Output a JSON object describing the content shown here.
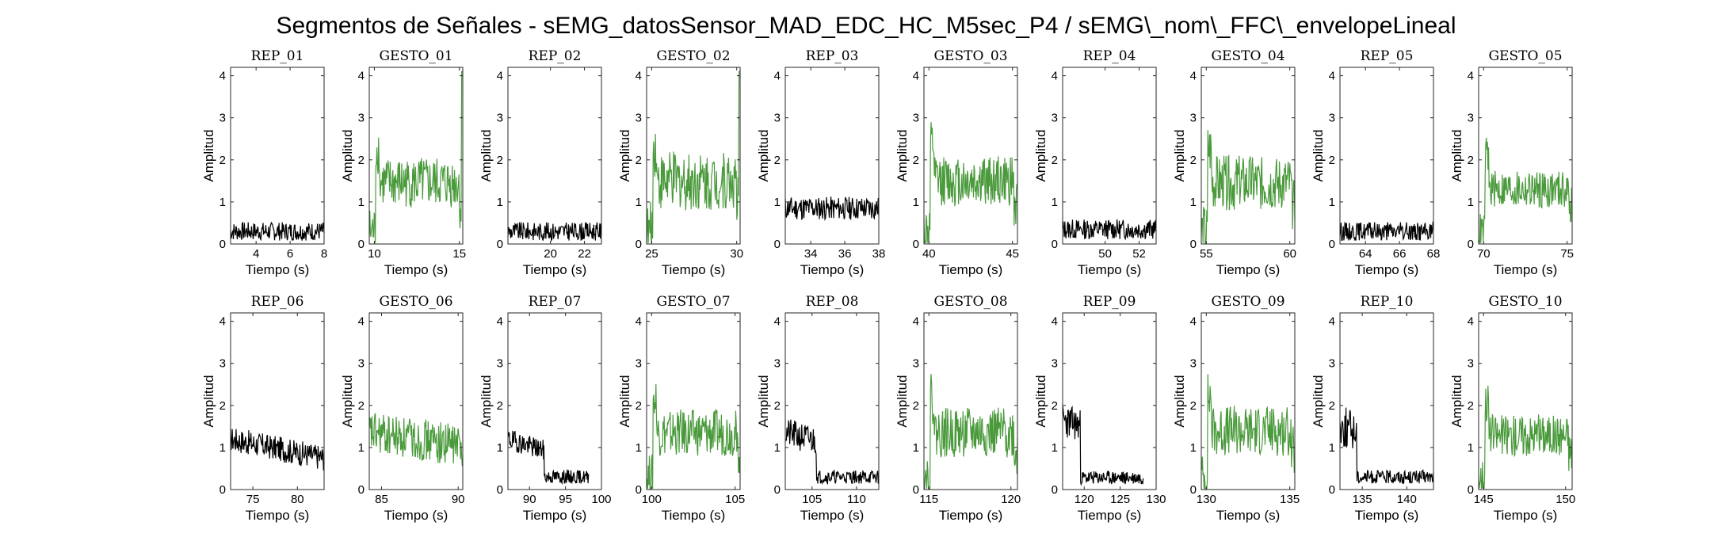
{
  "suptitle": "Segmentos de Señales - sEMG_datosSensor_MAD_EDC_HC_M5sec_P4 / sEMG\\_nom\\_FFC\\_envelopeLineal",
  "colors": {
    "rep": "#000000",
    "gesto": "#4a9a3c",
    "axes": "#262626"
  },
  "chart_data": [
    {
      "type": "line",
      "title": "REP_01",
      "kind": "rep",
      "xlabel": "Tiempo (s)",
      "ylabel": "Amplitud",
      "xlim": [
        2.5,
        8
      ],
      "ylim": [
        0,
        4.2
      ],
      "xticks": [
        4,
        6,
        8
      ],
      "yticks": [
        0,
        1,
        2,
        3,
        4
      ],
      "series": [
        {
          "x_range": [
            2.5,
            8
          ],
          "level": 0.3,
          "noise": 0.22,
          "shape": "flat"
        }
      ]
    },
    {
      "type": "line",
      "title": "GESTO_01",
      "kind": "gesto",
      "xlabel": "Tiempo (s)",
      "ylabel": "Amplitud",
      "xlim": [
        9.7,
        15.2
      ],
      "ylim": [
        0,
        4.2
      ],
      "xticks": [
        10,
        15
      ],
      "yticks": [
        0,
        1,
        2,
        3,
        4
      ],
      "series": [
        {
          "x_range": [
            9.7,
            15.2
          ],
          "level": 1.45,
          "noise": 0.6,
          "shape": "gesture",
          "spike_end": 4.1
        }
      ]
    },
    {
      "type": "line",
      "title": "REP_02",
      "kind": "rep",
      "xlabel": "Tiempo (s)",
      "ylabel": "Amplitud",
      "xlim": [
        17.5,
        23
      ],
      "ylim": [
        0,
        4.2
      ],
      "xticks": [
        20,
        22
      ],
      "yticks": [
        0,
        1,
        2,
        3,
        4
      ],
      "series": [
        {
          "x_range": [
            17.5,
            23
          ],
          "level": 0.3,
          "noise": 0.22,
          "shape": "flat"
        }
      ]
    },
    {
      "type": "line",
      "title": "GESTO_02",
      "kind": "gesto",
      "xlabel": "Tiempo (s)",
      "ylabel": "Amplitud",
      "xlim": [
        24.7,
        30.2
      ],
      "ylim": [
        0,
        4.2
      ],
      "xticks": [
        25,
        30
      ],
      "yticks": [
        0,
        1,
        2,
        3,
        4
      ],
      "series": [
        {
          "x_range": [
            24.7,
            30.2
          ],
          "level": 1.5,
          "noise": 0.7,
          "shape": "gesture",
          "spike_end": 4.1
        }
      ]
    },
    {
      "type": "line",
      "title": "REP_03",
      "kind": "rep",
      "xlabel": "Tiempo (s)",
      "ylabel": "Amplitud",
      "xlim": [
        32.5,
        38
      ],
      "ylim": [
        0,
        4.2
      ],
      "xticks": [
        34,
        36,
        38
      ],
      "yticks": [
        0,
        1,
        2,
        3,
        4
      ],
      "series": [
        {
          "x_range": [
            32.5,
            38
          ],
          "level": 0.85,
          "noise": 0.28,
          "shape": "flat"
        }
      ]
    },
    {
      "type": "line",
      "title": "GESTO_03",
      "kind": "gesto",
      "xlabel": "Tiempo (s)",
      "ylabel": "Amplitud",
      "xlim": [
        39.7,
        45.3
      ],
      "ylim": [
        0,
        4.2
      ],
      "xticks": [
        40,
        45
      ],
      "yticks": [
        0,
        1,
        2,
        3,
        4
      ],
      "series": [
        {
          "x_range": [
            39.7,
            45.3
          ],
          "level": 1.5,
          "noise": 0.6,
          "shape": "gesture"
        }
      ]
    },
    {
      "type": "line",
      "title": "REP_04",
      "kind": "rep",
      "xlabel": "Tiempo (s)",
      "ylabel": "Amplitud",
      "xlim": [
        47.5,
        53
      ],
      "ylim": [
        0,
        4.2
      ],
      "xticks": [
        50,
        52
      ],
      "yticks": [
        0,
        1,
        2,
        3,
        4
      ],
      "series": [
        {
          "x_range": [
            47.5,
            53
          ],
          "level": 0.35,
          "noise": 0.24,
          "shape": "flat"
        }
      ]
    },
    {
      "type": "line",
      "title": "GESTO_04",
      "kind": "gesto",
      "xlabel": "Tiempo (s)",
      "ylabel": "Amplitud",
      "xlim": [
        54.7,
        60.3
      ],
      "ylim": [
        0,
        4.2
      ],
      "xticks": [
        55,
        60
      ],
      "yticks": [
        0,
        1,
        2,
        3,
        4
      ],
      "series": [
        {
          "x_range": [
            54.7,
            60.3
          ],
          "level": 1.45,
          "noise": 0.65,
          "shape": "gesture"
        }
      ]
    },
    {
      "type": "line",
      "title": "REP_05",
      "kind": "rep",
      "xlabel": "Tiempo (s)",
      "ylabel": "Amplitud",
      "xlim": [
        62.5,
        68
      ],
      "ylim": [
        0,
        4.2
      ],
      "xticks": [
        64,
        66,
        68
      ],
      "yticks": [
        0,
        1,
        2,
        3,
        4
      ],
      "series": [
        {
          "x_range": [
            62.5,
            68
          ],
          "level": 0.3,
          "noise": 0.22,
          "shape": "flat"
        }
      ]
    },
    {
      "type": "line",
      "title": "GESTO_05",
      "kind": "gesto",
      "xlabel": "Tiempo (s)",
      "ylabel": "Amplitud",
      "xlim": [
        69.7,
        75.3
      ],
      "ylim": [
        0,
        4.2
      ],
      "xticks": [
        70,
        75
      ],
      "yticks": [
        0,
        1,
        2,
        3,
        4
      ],
      "series": [
        {
          "x_range": [
            69.7,
            75.3
          ],
          "level": 1.3,
          "noise": 0.45,
          "shape": "gesture"
        }
      ]
    },
    {
      "type": "line",
      "title": "REP_06",
      "kind": "rep",
      "xlabel": "Tiempo (s)",
      "ylabel": "Amplitud",
      "xlim": [
        72.5,
        83
      ],
      "ylim": [
        0,
        4.2
      ],
      "xticks": [
        75,
        80
      ],
      "yticks": [
        0,
        1,
        2,
        3,
        4
      ],
      "series": [
        {
          "x_range": [
            72.5,
            83
          ],
          "level": 1.2,
          "noise": 0.3,
          "shape": "decay",
          "end_level": 0.75
        }
      ]
    },
    {
      "type": "line",
      "title": "GESTO_06",
      "kind": "gesto",
      "xlabel": "Tiempo (s)",
      "ylabel": "Amplitud",
      "xlim": [
        84.2,
        90.3
      ],
      "ylim": [
        0,
        4.2
      ],
      "xticks": [
        85,
        90
      ],
      "yticks": [
        0,
        1,
        2,
        3,
        4
      ],
      "series": [
        {
          "x_range": [
            84.2,
            90.3
          ],
          "level": 1.35,
          "noise": 0.5,
          "shape": "decay",
          "end_level": 1.05
        }
      ]
    },
    {
      "type": "line",
      "title": "REP_07",
      "kind": "rep",
      "xlabel": "Tiempo (s)",
      "ylabel": "Amplitud",
      "xlim": [
        87,
        100
      ],
      "ylim": [
        0,
        4.2
      ],
      "xticks": [
        90,
        95,
        100
      ],
      "yticks": [
        0,
        1,
        2,
        3,
        4
      ],
      "series": [
        {
          "x_range": [
            87,
            98.2
          ],
          "level": 1.2,
          "noise": 0.25,
          "shape": "drop",
          "drop_at": 0.45,
          "end_level": 0.3
        }
      ]
    },
    {
      "type": "line",
      "title": "GESTO_07",
      "kind": "gesto",
      "xlabel": "Tiempo (s)",
      "ylabel": "Amplitud",
      "xlim": [
        99.7,
        105.3
      ],
      "ylim": [
        0,
        4.2
      ],
      "xticks": [
        100,
        105
      ],
      "yticks": [
        0,
        1,
        2,
        3,
        4
      ],
      "series": [
        {
          "x_range": [
            99.7,
            105.3
          ],
          "level": 1.35,
          "noise": 0.55,
          "shape": "gesture"
        }
      ]
    },
    {
      "type": "line",
      "title": "REP_08",
      "kind": "rep",
      "xlabel": "Tiempo (s)",
      "ylabel": "Amplitud",
      "xlim": [
        102,
        112.5
      ],
      "ylim": [
        0,
        4.2
      ],
      "xticks": [
        105,
        110
      ],
      "yticks": [
        0,
        1,
        2,
        3,
        4
      ],
      "series": [
        {
          "x_range": [
            102,
            112.5
          ],
          "level": 1.35,
          "noise": 0.35,
          "shape": "drop",
          "drop_at": 0.33,
          "end_level": 0.3
        }
      ]
    },
    {
      "type": "line",
      "title": "GESTO_08",
      "kind": "gesto",
      "xlabel": "Tiempo (s)",
      "ylabel": "Amplitud",
      "xlim": [
        114.7,
        120.4
      ],
      "ylim": [
        0,
        4.2
      ],
      "xticks": [
        115,
        120
      ],
      "yticks": [
        0,
        1,
        2,
        3,
        4
      ],
      "series": [
        {
          "x_range": [
            114.7,
            120.4
          ],
          "level": 1.35,
          "noise": 0.6,
          "shape": "gesture"
        }
      ]
    },
    {
      "type": "line",
      "title": "REP_09",
      "kind": "rep",
      "xlabel": "Tiempo (s)",
      "ylabel": "Amplitud",
      "xlim": [
        117,
        130
      ],
      "ylim": [
        0,
        4.2
      ],
      "xticks": [
        120,
        125,
        130
      ],
      "yticks": [
        0,
        1,
        2,
        3,
        4
      ],
      "series": [
        {
          "x_range": [
            117,
            128.2
          ],
          "level": 1.65,
          "noise": 0.4,
          "shape": "drop",
          "drop_at": 0.22,
          "end_level": 0.28
        }
      ]
    },
    {
      "type": "line",
      "title": "GESTO_09",
      "kind": "gesto",
      "xlabel": "Tiempo (s)",
      "ylabel": "Amplitud",
      "xlim": [
        129.7,
        135.3
      ],
      "ylim": [
        0,
        4.2
      ],
      "xticks": [
        130,
        135
      ],
      "yticks": [
        0,
        1,
        2,
        3,
        4
      ],
      "series": [
        {
          "x_range": [
            129.7,
            135.3
          ],
          "level": 1.4,
          "noise": 0.6,
          "shape": "gesture"
        }
      ]
    },
    {
      "type": "line",
      "title": "REP_10",
      "kind": "rep",
      "xlabel": "Tiempo (s)",
      "ylabel": "Amplitud",
      "xlim": [
        132.5,
        143
      ],
      "ylim": [
        0,
        4.2
      ],
      "xticks": [
        135,
        140
      ],
      "yticks": [
        0,
        1,
        2,
        3,
        4
      ],
      "series": [
        {
          "x_range": [
            132.5,
            143
          ],
          "level": 1.5,
          "noise": 0.5,
          "shape": "drop",
          "drop_at": 0.18,
          "end_level": 0.3
        }
      ]
    },
    {
      "type": "line",
      "title": "GESTO_10",
      "kind": "gesto",
      "xlabel": "Tiempo (s)",
      "ylabel": "Amplitud",
      "xlim": [
        144.7,
        150.4
      ],
      "ylim": [
        0,
        4.2
      ],
      "xticks": [
        145,
        150
      ],
      "yticks": [
        0,
        1,
        2,
        3,
        4
      ],
      "series": [
        {
          "x_range": [
            144.7,
            150.4
          ],
          "level": 1.3,
          "noise": 0.5,
          "shape": "gesture"
        }
      ]
    }
  ]
}
